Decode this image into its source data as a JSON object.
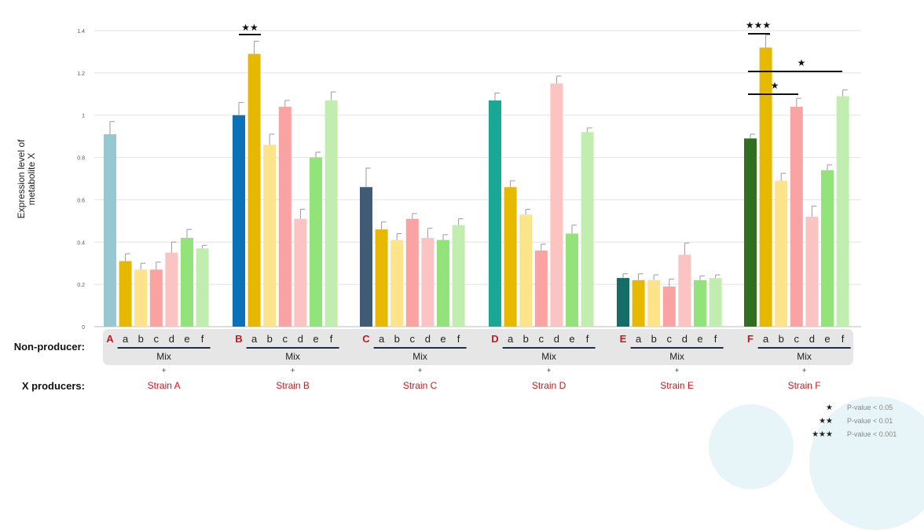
{
  "chart_data": {
    "type": "bar",
    "ylabel": "Expression level of\nmetabolite X",
    "ylim": [
      0,
      1.4
    ],
    "yticks": [
      0,
      0.2,
      0.4,
      0.6,
      0.8,
      1,
      1.2,
      1.4
    ],
    "ytick_labels": [
      "0",
      "0.2",
      "0.4",
      "0.6",
      "0.8",
      "1",
      "1.2",
      "1.4"
    ],
    "grid": true,
    "bar_labels": [
      "A",
      "a",
      "b",
      "c",
      "d",
      "e",
      "f",
      "B",
      "a",
      "b",
      "c",
      "d",
      "e",
      "f",
      "C",
      "a",
      "b",
      "c",
      "d",
      "e",
      "f",
      "D",
      "a",
      "b",
      "c",
      "d",
      "e",
      "f",
      "E",
      "a",
      "b",
      "c",
      "d",
      "e",
      "f",
      "F",
      "a",
      "b",
      "c",
      "d",
      "e",
      "f"
    ],
    "groups": [
      {
        "strain": "A",
        "label": "Strain A",
        "values": [
          0.91,
          0.31,
          0.27,
          0.27,
          0.35,
          0.42,
          0.37
        ],
        "errors": [
          0.06,
          0.035,
          0.03,
          0.035,
          0.05,
          0.04,
          0.015
        ],
        "colors": [
          "#96c8d2",
          "#e6b800",
          "#fde38a",
          "#fba3a3",
          "#fcc3c3",
          "#93e37b",
          "#c2edb1"
        ]
      },
      {
        "strain": "B",
        "label": "Strain B",
        "values": [
          1.0,
          1.29,
          0.86,
          1.04,
          0.51,
          0.8,
          1.07
        ],
        "errors": [
          0.06,
          0.06,
          0.05,
          0.03,
          0.045,
          0.025,
          0.04
        ],
        "colors": [
          "#0b72b9",
          "#e6b800",
          "#fde38a",
          "#fba3a3",
          "#fcc3c3",
          "#93e37b",
          "#c2edb1"
        ]
      },
      {
        "strain": "C",
        "label": "Strain C",
        "values": [
          0.66,
          0.46,
          0.41,
          0.51,
          0.42,
          0.41,
          0.48
        ],
        "errors": [
          0.09,
          0.035,
          0.03,
          0.025,
          0.045,
          0.025,
          0.03
        ],
        "colors": [
          "#3f5b75",
          "#e6b800",
          "#fde38a",
          "#fba3a3",
          "#fcc3c3",
          "#93e37b",
          "#c2edb1"
        ]
      },
      {
        "strain": "D",
        "label": "Strain D",
        "values": [
          1.07,
          0.66,
          0.53,
          0.36,
          1.15,
          0.44,
          0.92
        ],
        "errors": [
          0.035,
          0.03,
          0.025,
          0.03,
          0.035,
          0.04,
          0.02
        ],
        "colors": [
          "#19a796",
          "#e6b800",
          "#fde38a",
          "#fba3a3",
          "#fcc3c3",
          "#93e37b",
          "#c2edb1"
        ]
      },
      {
        "strain": "E",
        "label": "Strain E",
        "values": [
          0.23,
          0.22,
          0.22,
          0.19,
          0.34,
          0.22,
          0.23
        ],
        "errors": [
          0.02,
          0.03,
          0.025,
          0.035,
          0.055,
          0.02,
          0.015
        ],
        "colors": [
          "#146e65",
          "#e6b800",
          "#fde38a",
          "#fba3a3",
          "#fcc3c3",
          "#93e37b",
          "#c2edb1"
        ]
      },
      {
        "strain": "F",
        "label": "Strain F",
        "values": [
          0.89,
          1.32,
          0.69,
          1.04,
          0.52,
          0.74,
          1.09
        ],
        "errors": [
          0.02,
          0.06,
          0.035,
          0.04,
          0.05,
          0.025,
          0.03
        ],
        "colors": [
          "#2f6f1f",
          "#e6b800",
          "#fde38a",
          "#fba3a3",
          "#fcc3c3",
          "#93e37b",
          "#c2edb1"
        ]
      }
    ],
    "significance": [
      {
        "group": "B",
        "from": "B",
        "to": "a",
        "stars": "★★"
      },
      {
        "group": "F",
        "from": "F",
        "to": "a",
        "stars": "★★★"
      },
      {
        "group": "F",
        "from": "F",
        "to": "f",
        "stars": "★"
      },
      {
        "group": "F",
        "from": "F",
        "to": "c",
        "stars": "★"
      }
    ]
  },
  "rows": {
    "non_producer": "Non-producer:",
    "x_producers": "X producers:"
  },
  "mix_label": "Mix",
  "plus_sign": "+",
  "strain_label_color": "#c8181e",
  "legend": [
    {
      "stars": "★",
      "text": "P-value < 0.05"
    },
    {
      "stars": "★★",
      "text": "P-value < 0.01"
    },
    {
      "stars": "★★★",
      "text": "P-value < 0.001"
    }
  ]
}
